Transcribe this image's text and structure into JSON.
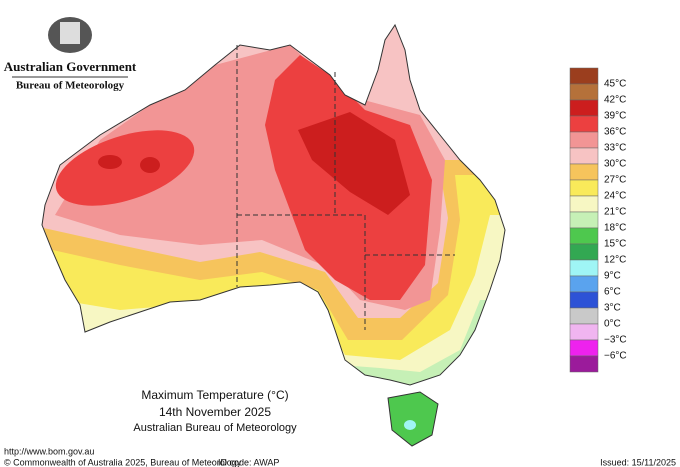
{
  "header": {
    "agency": "Australian Government",
    "bureau": "Bureau of Meteorology"
  },
  "map": {
    "title": "Maximum Temperature (°C)",
    "date": "14th November 2025",
    "source": "Australian Bureau of Meteorology"
  },
  "legend": [
    {
      "label": "45°C",
      "color": "#9b3e1e"
    },
    {
      "label": "42°C",
      "color": "#b5713a"
    },
    {
      "label": "39°C",
      "color": "#cc1e1e"
    },
    {
      "label": "36°C",
      "color": "#ec4040"
    },
    {
      "label": "33°C",
      "color": "#f29595"
    },
    {
      "label": "30°C",
      "color": "#f7c3c3"
    },
    {
      "label": "27°C",
      "color": "#f6c45c"
    },
    {
      "label": "24°C",
      "color": "#f9ea5a"
    },
    {
      "label": "21°C",
      "color": "#f7f7c3"
    },
    {
      "label": "18°C",
      "color": "#c6f0b6"
    },
    {
      "label": "15°C",
      "color": "#4ec84e"
    },
    {
      "label": "12°C",
      "color": "#32a852"
    },
    {
      "label": "9°C",
      "color": "#9ff5f5"
    },
    {
      "label": "6°C",
      "color": "#5aa3ee"
    },
    {
      "label": "3°C",
      "color": "#2d52d6"
    },
    {
      "label": "0°C",
      "color": "#c9c9c9"
    },
    {
      "label": "−3°C",
      "color": "#f0b5f0"
    },
    {
      "label": "−6°C",
      "color": "#ee22ee"
    },
    {
      "label": "",
      "color": "#9b1b9b"
    }
  ],
  "footer": {
    "url": "http://www.bom.gov.au",
    "copyright": "© Commonwealth of Australia 2025, Bureau of Meteorology",
    "id": "ID code: AWAP",
    "issued": "Issued: 15/11/2025"
  }
}
